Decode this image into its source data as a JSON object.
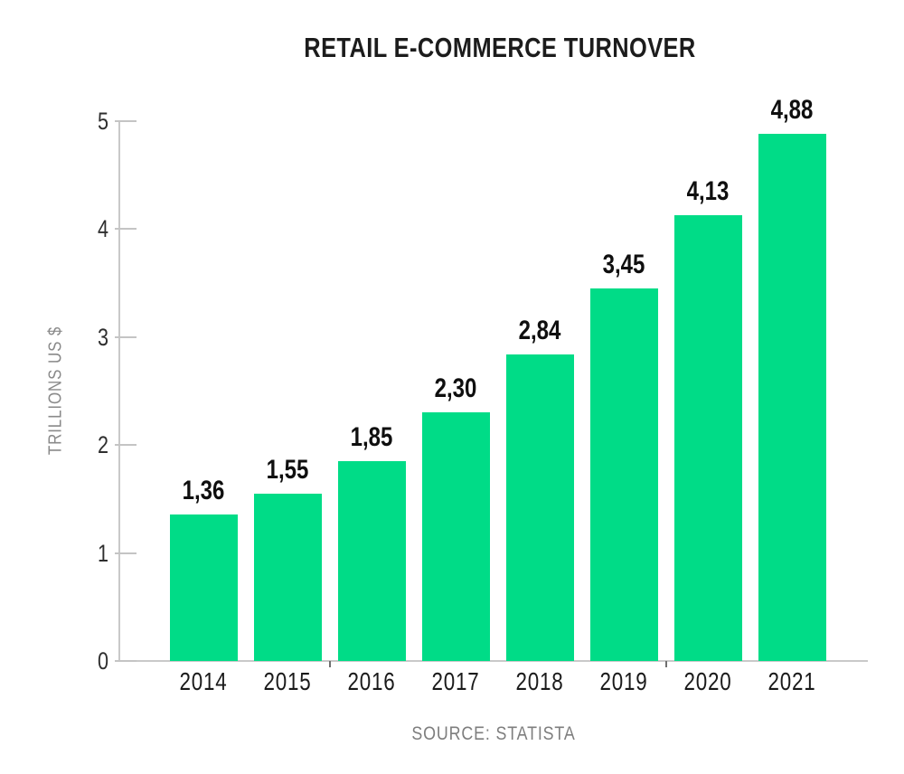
{
  "chart_data": {
    "type": "bar",
    "title": "RETAIL E-COMMERCE TURNOVER",
    "categories": [
      "2014",
      "2015",
      "2016",
      "2017",
      "2018",
      "2019",
      "2020",
      "2021"
    ],
    "values": [
      1.36,
      1.55,
      1.85,
      2.3,
      2.84,
      3.45,
      4.13,
      4.88
    ],
    "value_labels": [
      "1,36",
      "1,55",
      "1,85",
      "2,30",
      "2,84",
      "3,45",
      "4,13",
      "4,88"
    ],
    "xlabel": "",
    "ylabel": "TRILLIONS US $",
    "ylim": [
      0,
      5
    ],
    "yticks": [
      0,
      1,
      2,
      3,
      4,
      5
    ],
    "grid": false,
    "legend": false,
    "source": "SOURCE: STATISTA",
    "colors": {
      "bar": "#00dc87",
      "title_text": "#1c1c1c",
      "value_label_text": "#0f0f0f",
      "axis_line": "#c9c9c9",
      "tick_label_text": "#2e2e2e",
      "muted_text": "#8a8a8a"
    }
  }
}
